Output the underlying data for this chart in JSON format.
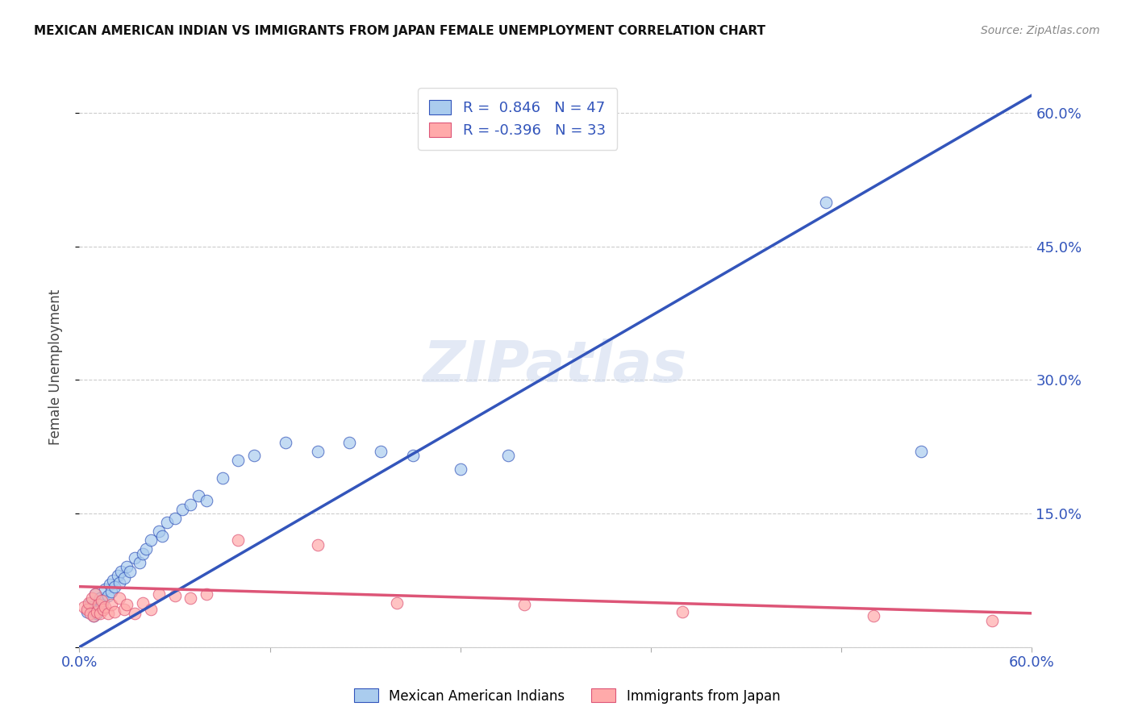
{
  "title": "MEXICAN AMERICAN INDIAN VS IMMIGRANTS FROM JAPAN FEMALE UNEMPLOYMENT CORRELATION CHART",
  "source": "Source: ZipAtlas.com",
  "ylabel": "Female Unemployment",
  "xlim": [
    0.0,
    0.6
  ],
  "ylim": [
    0.0,
    0.63
  ],
  "grid_color": "#cccccc",
  "background_color": "#ffffff",
  "blue_color": "#aaccee",
  "blue_line_color": "#3355bb",
  "pink_color": "#ffaaaa",
  "pink_line_color": "#dd5577",
  "blue_R": 0.846,
  "blue_N": 47,
  "pink_R": -0.396,
  "pink_N": 33,
  "watermark_text": "ZIPatlas",
  "blue_line_x0": 0.0,
  "blue_line_y0": 0.0,
  "blue_line_x1": 0.6,
  "blue_line_y1": 0.62,
  "pink_line_x0": 0.0,
  "pink_line_y0": 0.068,
  "pink_line_x1": 0.6,
  "pink_line_y1": 0.038,
  "blue_x": [
    0.005,
    0.007,
    0.008,
    0.009,
    0.01,
    0.011,
    0.012,
    0.013,
    0.014,
    0.015,
    0.016,
    0.018,
    0.019,
    0.02,
    0.021,
    0.022,
    0.024,
    0.025,
    0.026,
    0.028,
    0.03,
    0.032,
    0.035,
    0.038,
    0.04,
    0.042,
    0.045,
    0.05,
    0.052,
    0.055,
    0.06,
    0.065,
    0.07,
    0.075,
    0.08,
    0.09,
    0.1,
    0.11,
    0.13,
    0.15,
    0.17,
    0.19,
    0.21,
    0.24,
    0.27,
    0.47,
    0.53
  ],
  "blue_y": [
    0.04,
    0.05,
    0.045,
    0.035,
    0.06,
    0.038,
    0.042,
    0.055,
    0.048,
    0.052,
    0.065,
    0.058,
    0.07,
    0.062,
    0.075,
    0.068,
    0.08,
    0.072,
    0.085,
    0.078,
    0.09,
    0.085,
    0.1,
    0.095,
    0.105,
    0.11,
    0.12,
    0.13,
    0.125,
    0.14,
    0.145,
    0.155,
    0.16,
    0.17,
    0.165,
    0.19,
    0.21,
    0.215,
    0.23,
    0.22,
    0.23,
    0.22,
    0.215,
    0.2,
    0.215,
    0.5,
    0.22
  ],
  "pink_x": [
    0.003,
    0.005,
    0.006,
    0.007,
    0.008,
    0.009,
    0.01,
    0.011,
    0.012,
    0.013,
    0.014,
    0.015,
    0.016,
    0.018,
    0.02,
    0.022,
    0.025,
    0.028,
    0.03,
    0.035,
    0.04,
    0.045,
    0.05,
    0.06,
    0.07,
    0.08,
    0.1,
    0.15,
    0.2,
    0.28,
    0.38,
    0.5,
    0.575
  ],
  "pink_y": [
    0.045,
    0.042,
    0.05,
    0.038,
    0.055,
    0.035,
    0.06,
    0.04,
    0.048,
    0.038,
    0.052,
    0.042,
    0.045,
    0.038,
    0.048,
    0.04,
    0.055,
    0.042,
    0.048,
    0.038,
    0.05,
    0.042,
    0.06,
    0.058,
    0.055,
    0.06,
    0.12,
    0.115,
    0.05,
    0.048,
    0.04,
    0.035,
    0.03
  ]
}
